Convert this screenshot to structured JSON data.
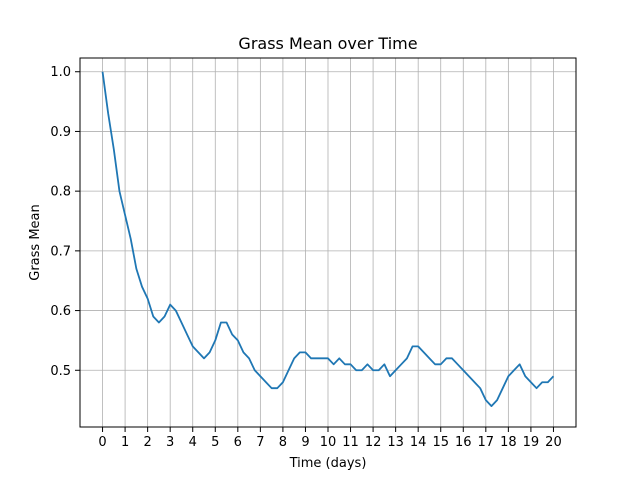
{
  "chart_data": {
    "type": "line",
    "title": "Grass Mean over Time",
    "xlabel": "Time (days)",
    "ylabel": "Grass Mean",
    "xlim": [
      -1.0,
      21.0
    ],
    "ylim": [
      0.405,
      1.023
    ],
    "x_ticks": [
      0,
      1,
      2,
      3,
      4,
      5,
      6,
      7,
      8,
      9,
      10,
      11,
      12,
      13,
      14,
      15,
      16,
      17,
      18,
      19,
      20
    ],
    "y_ticks": [
      0.5,
      0.6,
      0.7,
      0.8,
      0.9,
      1.0
    ],
    "y_tick_labels": [
      "0.5",
      "0.6",
      "0.7",
      "0.8",
      "0.9",
      "1.0"
    ],
    "grid": true,
    "series": [
      {
        "color": "#1f77b4",
        "x": [
          0,
          0.25,
          0.5,
          0.75,
          1.0,
          1.25,
          1.5,
          1.75,
          2.0,
          2.25,
          2.5,
          2.75,
          3.0,
          3.25,
          3.5,
          3.75,
          4.0,
          4.25,
          4.5,
          4.75,
          5.0,
          5.25,
          5.5,
          5.75,
          6.0,
          6.25,
          6.5,
          6.75,
          7.0,
          7.25,
          7.5,
          7.75,
          8.0,
          8.25,
          8.5,
          8.75,
          9.0,
          9.25,
          9.5,
          9.75,
          10.0,
          10.25,
          10.5,
          10.75,
          11.0,
          11.25,
          11.5,
          11.75,
          12.0,
          12.25,
          12.5,
          12.75,
          13.0,
          13.25,
          13.5,
          13.75,
          14.0,
          14.25,
          14.5,
          14.75,
          15.0,
          15.25,
          15.5,
          15.75,
          16.0,
          16.25,
          16.5,
          16.75,
          17.0,
          17.25,
          17.5,
          17.75,
          18.0,
          18.25,
          18.5,
          18.75,
          19.0,
          19.25,
          19.5,
          19.75,
          20.0
        ],
        "values": [
          1.0,
          0.93,
          0.87,
          0.8,
          0.76,
          0.72,
          0.67,
          0.64,
          0.62,
          0.59,
          0.58,
          0.59,
          0.61,
          0.6,
          0.58,
          0.56,
          0.54,
          0.53,
          0.52,
          0.53,
          0.55,
          0.58,
          0.58,
          0.56,
          0.55,
          0.53,
          0.52,
          0.5,
          0.49,
          0.48,
          0.47,
          0.47,
          0.48,
          0.5,
          0.52,
          0.53,
          0.53,
          0.52,
          0.52,
          0.52,
          0.52,
          0.51,
          0.52,
          0.51,
          0.51,
          0.5,
          0.5,
          0.51,
          0.5,
          0.5,
          0.51,
          0.49,
          0.5,
          0.51,
          0.52,
          0.54,
          0.54,
          0.53,
          0.52,
          0.51,
          0.51,
          0.52,
          0.52,
          0.51,
          0.5,
          0.49,
          0.48,
          0.47,
          0.45,
          0.44,
          0.45,
          0.47,
          0.49,
          0.5,
          0.51,
          0.49,
          0.48,
          0.47,
          0.48,
          0.48,
          0.49
        ]
      }
    ]
  }
}
